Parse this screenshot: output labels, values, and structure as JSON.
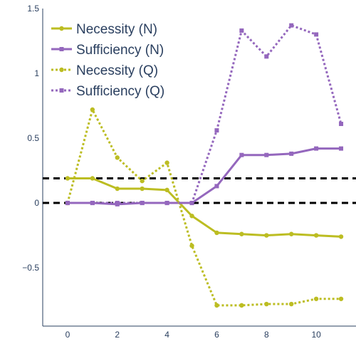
{
  "chart_data": {
    "type": "line",
    "x": [
      0,
      1,
      2,
      3,
      4,
      5,
      6,
      7,
      8,
      9,
      10,
      11
    ],
    "xlim": [
      -1,
      11.6
    ],
    "ylim": [
      -0.95,
      1.5
    ],
    "x_ticks": [
      0,
      2,
      4,
      6,
      8,
      10
    ],
    "y_ticks": [
      -0.5,
      0,
      0.5,
      1,
      1.5
    ],
    "y_tick_labels": [
      "−0.5",
      "0",
      "0.5",
      "1",
      "1.5"
    ],
    "grid": false,
    "legend_position": "top-left",
    "series": [
      {
        "name": "Necessity (N)",
        "color": "#bcbd22",
        "dash": "solid",
        "marker": "circle",
        "values": [
          0.19,
          0.19,
          0.11,
          0.11,
          0.1,
          -0.1,
          -0.23,
          -0.24,
          -0.25,
          -0.24,
          -0.25,
          -0.26
        ]
      },
      {
        "name": "Sufficiency (N)",
        "color": "#9467bd",
        "dash": "solid",
        "marker": "square",
        "values": [
          0.0,
          0.0,
          -0.01,
          0.0,
          0.0,
          0.0,
          0.13,
          0.37,
          0.37,
          0.38,
          0.42,
          0.42
        ]
      },
      {
        "name": "Necessity (Q)",
        "color": "#bcbd22",
        "dash": "dot",
        "marker": "circle",
        "values": [
          0.0,
          0.72,
          0.35,
          0.17,
          0.31,
          -0.33,
          -0.79,
          -0.79,
          -0.78,
          -0.78,
          -0.74,
          -0.74
        ]
      },
      {
        "name": "Sufficiency (Q)",
        "color": "#9467bd",
        "dash": "dot",
        "marker": "square",
        "values": [
          0.0,
          0.0,
          0.0,
          0.0,
          0.0,
          0.0,
          0.56,
          1.33,
          1.13,
          1.37,
          1.3,
          0.61
        ]
      }
    ],
    "reference_lines": [
      0.19,
      0.0
    ]
  }
}
